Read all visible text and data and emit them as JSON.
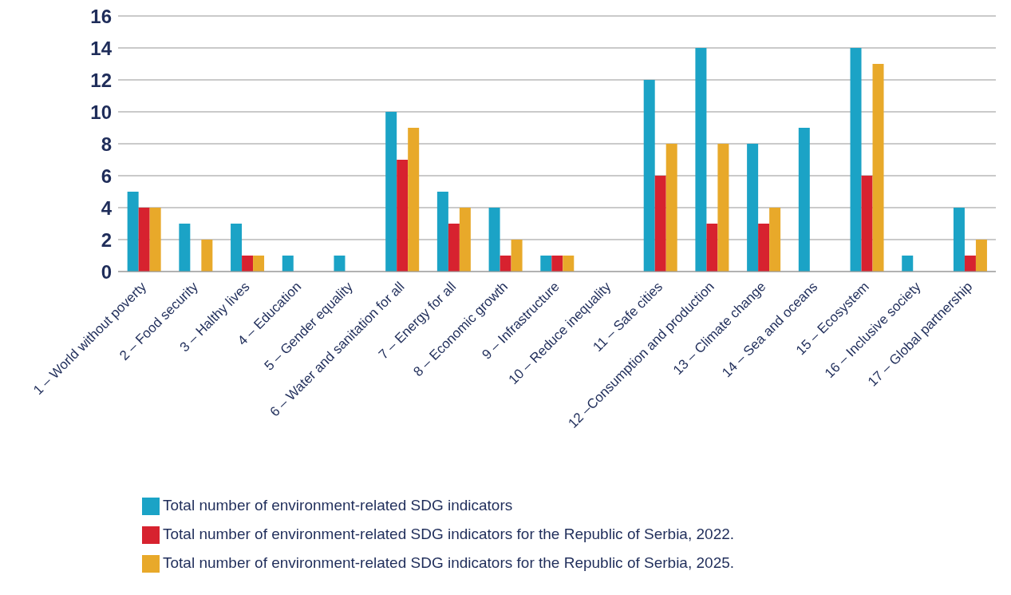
{
  "chart_data": {
    "type": "bar",
    "categories": [
      "1 – World without poverty",
      "2 – Food security",
      "3 – Halthy lives",
      "4 – Education",
      "5 – Gender equality",
      "6 –  Water and sanitation for all",
      "7 – Energy for all",
      "8 – Economic growth",
      "9 – Infrastructure",
      "10 – Reduce inequality",
      "11 – Safe cities",
      "12 –Consumption and production",
      "13 – Climate change",
      "14 – Sea and oceans",
      "15 – Ecosystem",
      "16 – Inclusive society",
      "17 – Global partnership"
    ],
    "series": [
      {
        "name": "Total number of environment-related SDG indicators",
        "color": "#1ba3c6",
        "values": [
          5,
          3,
          3,
          1,
          1,
          10,
          5,
          4,
          1,
          0,
          12,
          14,
          8,
          9,
          14,
          1,
          4
        ]
      },
      {
        "name": "Total number of environment-related SDG indicators for the Republic of Serbia, 2022.",
        "color": "#d7222f",
        "values": [
          4,
          0,
          1,
          0,
          0,
          7,
          3,
          1,
          1,
          0,
          6,
          3,
          3,
          0,
          6,
          0,
          1
        ]
      },
      {
        "name": "Total number of environment-related SDG indicators for the Republic of Serbia, 2025.",
        "color": "#e8a92a",
        "values": [
          4,
          2,
          1,
          0,
          0,
          9,
          4,
          2,
          1,
          0,
          8,
          8,
          4,
          0,
          13,
          0,
          2
        ]
      }
    ],
    "ylim": [
      0,
      16
    ],
    "yticks": [
      0,
      2,
      4,
      6,
      8,
      10,
      12,
      14,
      16
    ],
    "grid": "y",
    "legend": "bottom"
  }
}
